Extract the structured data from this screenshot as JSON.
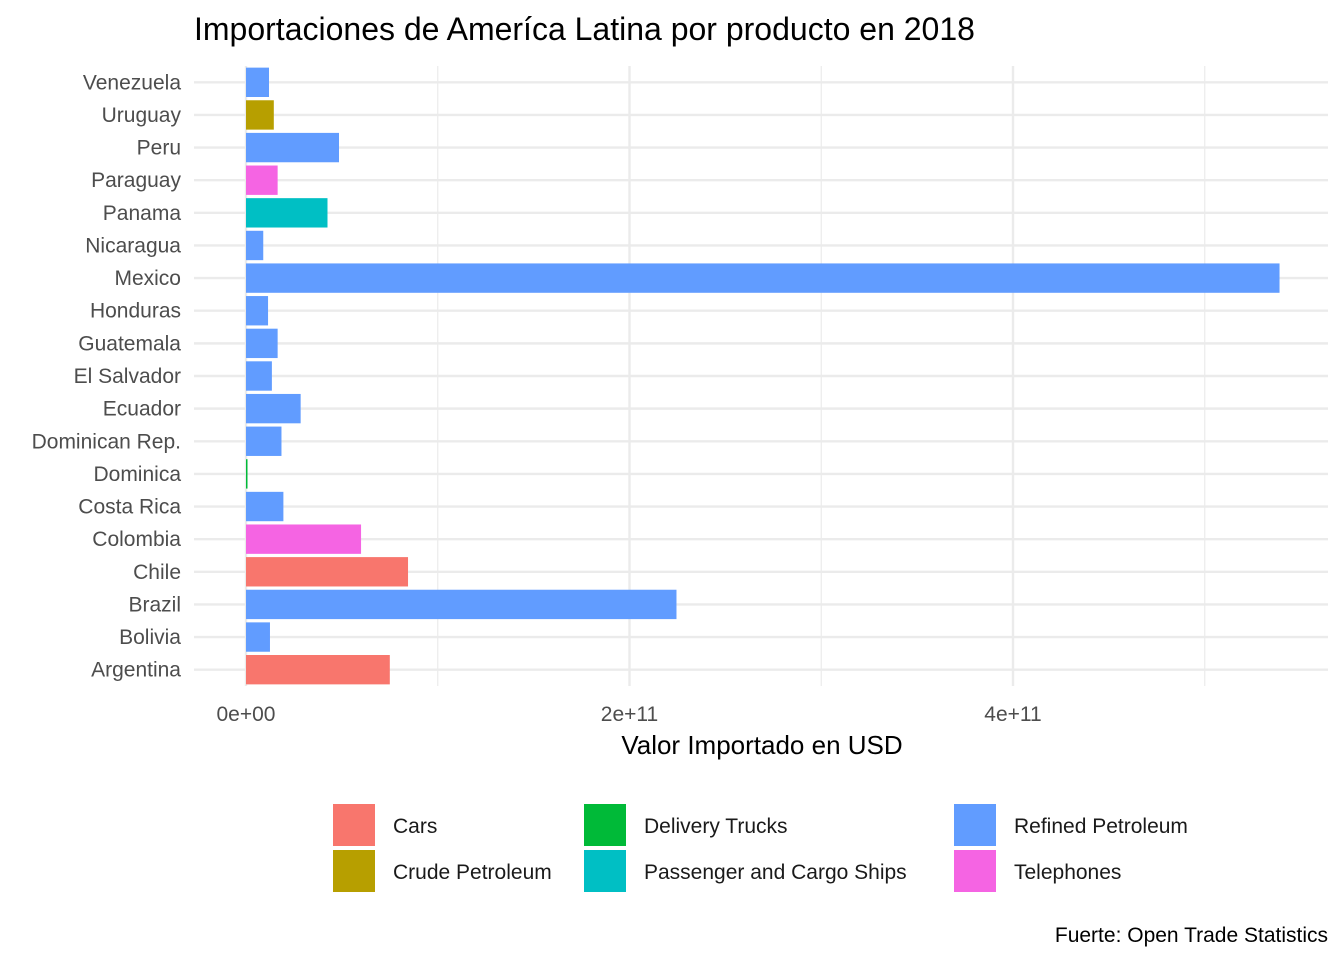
{
  "chart_data": {
    "type": "bar",
    "orientation": "horizontal",
    "title": "Importaciones de Ameríca Latina por producto en 2018",
    "xlabel": "Valor Importado en USD",
    "ylabel": "",
    "caption": "Fuerte: Open Trade Statistics",
    "xlim": [
      0,
      565000000000
    ],
    "xticks": [
      {
        "value": 0,
        "label": "0e+00"
      },
      {
        "value": 200000000000,
        "label": "2e+11"
      },
      {
        "value": 400000000000,
        "label": "4e+11"
      }
    ],
    "grid": true,
    "legend_position": "bottom",
    "categories": [
      "Venezuela",
      "Uruguay",
      "Peru",
      "Paraguay",
      "Panama",
      "Nicaragua",
      "Mexico",
      "Honduras",
      "Guatemala",
      "El Salvador",
      "Ecuador",
      "Dominican Rep.",
      "Dominica",
      "Costa Rica",
      "Colombia",
      "Chile",
      "Brazil",
      "Bolivia",
      "Argentina"
    ],
    "bars": [
      {
        "country": "Venezuela",
        "product": "Refined Petroleum",
        "value": 12000000000
      },
      {
        "country": "Uruguay",
        "product": "Crude Petroleum",
        "value": 14500000000
      },
      {
        "country": "Peru",
        "product": "Refined Petroleum",
        "value": 48500000000
      },
      {
        "country": "Paraguay",
        "product": "Telephones",
        "value": 16500000000
      },
      {
        "country": "Panama",
        "product": "Passenger and Cargo Ships",
        "value": 42500000000
      },
      {
        "country": "Nicaragua",
        "product": "Refined Petroleum",
        "value": 9000000000
      },
      {
        "country": "Mexico",
        "product": "Refined Petroleum",
        "value": 539000000000
      },
      {
        "country": "Honduras",
        "product": "Refined Petroleum",
        "value": 11500000000
      },
      {
        "country": "Guatemala",
        "product": "Refined Petroleum",
        "value": 16500000000
      },
      {
        "country": "El Salvador",
        "product": "Refined Petroleum",
        "value": 13500000000
      },
      {
        "country": "Ecuador",
        "product": "Refined Petroleum",
        "value": 28500000000
      },
      {
        "country": "Dominican Rep.",
        "product": "Refined Petroleum",
        "value": 18500000000
      },
      {
        "country": "Dominica",
        "product": "Delivery Trucks",
        "value": 500000000
      },
      {
        "country": "Costa Rica",
        "product": "Refined Petroleum",
        "value": 19500000000
      },
      {
        "country": "Colombia",
        "product": "Telephones",
        "value": 60000000000
      },
      {
        "country": "Chile",
        "product": "Cars",
        "value": 84500000000
      },
      {
        "country": "Brazil",
        "product": "Refined Petroleum",
        "value": 224500000000
      },
      {
        "country": "Bolivia",
        "product": "Refined Petroleum",
        "value": 12500000000
      },
      {
        "country": "Argentina",
        "product": "Cars",
        "value": 75000000000
      }
    ],
    "legend": [
      {
        "name": "Cars",
        "color": "#F8766D"
      },
      {
        "name": "Crude Petroleum",
        "color": "#B79F00"
      },
      {
        "name": "Delivery Trucks",
        "color": "#00BA38"
      },
      {
        "name": "Passenger and Cargo Ships",
        "color": "#00BFC4"
      },
      {
        "name": "Refined Petroleum",
        "color": "#619CFF"
      },
      {
        "name": "Telephones",
        "color": "#F564E3"
      }
    ]
  }
}
